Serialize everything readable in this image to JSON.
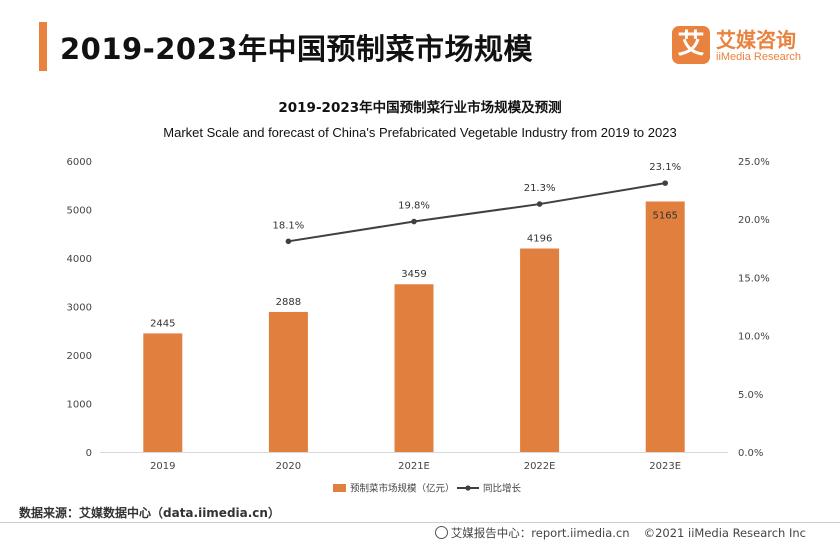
{
  "header": {
    "title": "2019-2023年中国预制菜市场规模",
    "logo_mark": "艾",
    "logo_cn": "艾媒咨询",
    "logo_en": "iiMedia Research"
  },
  "chart_data": {
    "type": "bar",
    "title": "2019-2023年中国预制菜行业市场规模及预测",
    "subtitle": "Market Scale and forecast of China's Prefabricated Vegetable Industry from 2019 to 2023",
    "categories": [
      "2019",
      "2020",
      "2021E",
      "2022E",
      "2023E"
    ],
    "series": [
      {
        "name": "预制菜市场规模（亿元）",
        "type": "bar",
        "axis": "left",
        "color": "#e07f3e",
        "values": [
          2445,
          2888,
          3459,
          4196,
          5165
        ]
      },
      {
        "name": "同比增长",
        "type": "line",
        "axis": "right",
        "color": "#404040",
        "values": [
          null,
          18.1,
          19.8,
          21.3,
          23.1
        ],
        "labels": [
          "",
          "18.1%",
          "19.8%",
          "21.3%",
          "23.1%"
        ]
      }
    ],
    "y_left": {
      "min": 0,
      "max": 6000,
      "ticks": [
        "0",
        "1000",
        "2000",
        "3000",
        "4000",
        "5000",
        "6000"
      ]
    },
    "y_right": {
      "min": 0,
      "max": 25,
      "ticks": [
        "0.0%",
        "5.0%",
        "10.0%",
        "15.0%",
        "20.0%",
        "25.0%"
      ]
    },
    "grid": false,
    "legend_position": "bottom-center"
  },
  "footer": {
    "source": "数据来源：艾媒数据中心（data.iimedia.cn）",
    "report": "艾媒报告中心：report.iimedia.cn",
    "copyright": "©2021  iiMedia Research  Inc"
  }
}
